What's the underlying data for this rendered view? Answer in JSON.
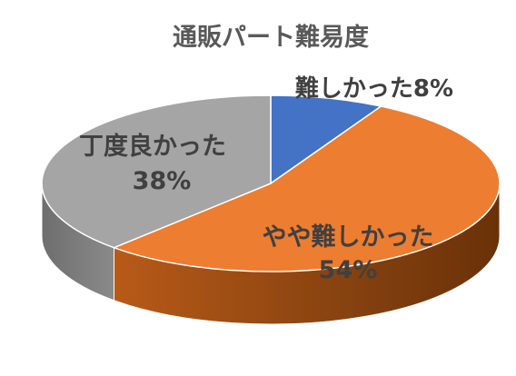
{
  "chart_data": {
    "type": "pie",
    "title": "通販パート難易度",
    "slices": [
      {
        "label": "難しかった",
        "value": 8,
        "display": "8%",
        "color": "#4472C4"
      },
      {
        "label": "やや難しかった",
        "value": 54,
        "display": "54%",
        "color": "#ED7D31"
      },
      {
        "label": "丁度良かった",
        "value": 38,
        "display": "38%",
        "color": "#A5A5A5"
      }
    ],
    "style": "3d-pie",
    "legend": "none",
    "data_labels": "category-and-percent"
  }
}
